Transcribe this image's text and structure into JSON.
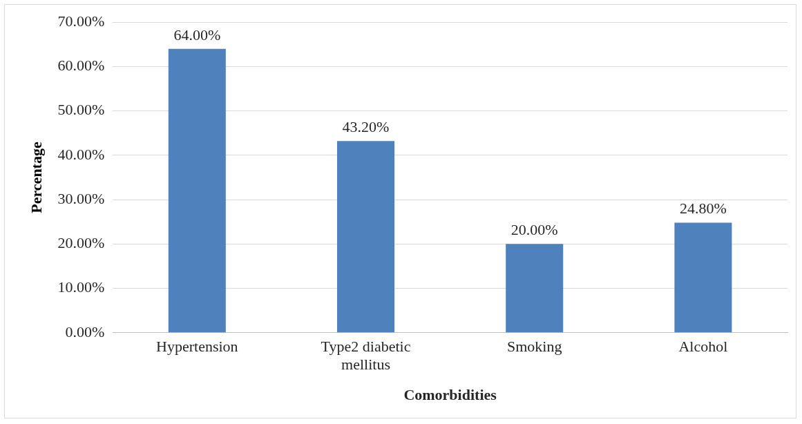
{
  "chart_data": {
    "type": "bar",
    "xlabel": "Comorbidities",
    "ylabel": "Percentage",
    "categories": [
      "Hypertension",
      "Type2 diabetic mellitus",
      "Smoking",
      "Alcohol"
    ],
    "values": [
      64,
      43.2,
      20,
      24.8
    ],
    "color": "#4f81bd",
    "value_labels": [
      "64.00%",
      "43.20%",
      "20.00%",
      "24.80%"
    ],
    "ylim": [
      0,
      70
    ],
    "yticks": [
      {
        "value": 0,
        "label": "0.00%"
      },
      {
        "value": 10,
        "label": "10.00%"
      },
      {
        "value": 20,
        "label": "20.00%"
      },
      {
        "value": 30,
        "label": "30.00%"
      },
      {
        "value": 40,
        "label": "40.00%"
      },
      {
        "value": 50,
        "label": "50.00%"
      },
      {
        "value": 60,
        "label": "60.00%"
      },
      {
        "value": 70,
        "label": "70.00%"
      }
    ],
    "grid": "y",
    "legend": false
  }
}
